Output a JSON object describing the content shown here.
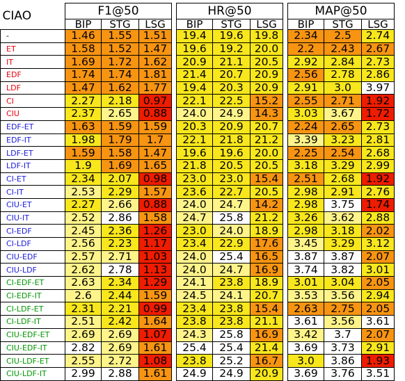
{
  "table": {
    "corner_label": "CIAO",
    "groups": [
      {
        "name": "F1@50",
        "subcols": [
          "BIP",
          "STG",
          "LSG"
        ]
      },
      {
        "name": "HR@50",
        "subcols": [
          "BIP",
          "STG",
          "LSG"
        ]
      },
      {
        "name": "MAP@50",
        "subcols": [
          "BIP",
          "STG",
          "LSG"
        ]
      }
    ],
    "label_colors": {
      "black": "#000000",
      "red": "#e8000b",
      "blue": "#1a1adc",
      "green": "#009600"
    },
    "cell_colors": {
      "red": "#ee1c00",
      "orange": "#f79412",
      "yellow": "#f8e71c",
      "lightyellow": "#fff48a",
      "white": "#ffffff"
    },
    "rows": [
      {
        "label": "-",
        "color": "black",
        "values": [
          "1.46",
          "1.55",
          "1.51",
          "19.4",
          "19.6",
          "19.8",
          "2.34",
          "2.5",
          "2.74"
        ],
        "shades": [
          "orange",
          "orange",
          "orange",
          "yellow",
          "yellow",
          "yellow",
          "orange",
          "orange",
          "yellow"
        ]
      },
      {
        "label": "ET",
        "color": "red",
        "values": [
          "1.58",
          "1.52",
          "1.47",
          "19.6",
          "19.2",
          "20.0",
          "2.2",
          "2.43",
          "2.67"
        ],
        "shades": [
          "orange",
          "orange",
          "orange",
          "yellow",
          "yellow",
          "yellow",
          "orange",
          "orange",
          "orange"
        ]
      },
      {
        "label": "IT",
        "color": "red",
        "values": [
          "1.69",
          "1.72",
          "1.62",
          "20.9",
          "21.1",
          "20.5",
          "2.92",
          "2.84",
          "2.73"
        ],
        "shades": [
          "orange",
          "orange",
          "orange",
          "yellow",
          "yellow",
          "yellow",
          "yellow",
          "yellow",
          "yellow"
        ]
      },
      {
        "label": "EDF",
        "color": "red",
        "values": [
          "1.74",
          "1.74",
          "1.81",
          "21.4",
          "20.7",
          "20.9",
          "2.56",
          "2.78",
          "2.86"
        ],
        "shades": [
          "orange",
          "orange",
          "orange",
          "yellow",
          "yellow",
          "yellow",
          "orange",
          "yellow",
          "yellow"
        ]
      },
      {
        "label": "LDF",
        "color": "red",
        "values": [
          "1.47",
          "1.62",
          "1.77",
          "19.4",
          "20.3",
          "20.9",
          "2.91",
          "3.0",
          "3.97"
        ],
        "shades": [
          "orange",
          "orange",
          "orange",
          "yellow",
          "yellow",
          "yellow",
          "yellow",
          "yellow",
          "white"
        ]
      },
      {
        "label": "CI",
        "color": "red",
        "values": [
          "2.27",
          "2.18",
          "0.97",
          "22.1",
          "22.5",
          "15.2",
          "2.55",
          "2.71",
          "1.92"
        ],
        "shades": [
          "yellow",
          "yellow",
          "red",
          "yellow",
          "yellow",
          "orange",
          "orange",
          "orange",
          "red"
        ]
      },
      {
        "label": "CIU",
        "color": "red",
        "values": [
          "2.37",
          "2.65",
          "0.88",
          "24.0",
          "24.9",
          "14.3",
          "3.03",
          "3.67",
          "1.72"
        ],
        "shades": [
          "yellow",
          "lightyellow",
          "red",
          "lightyellow",
          "lightyellow",
          "orange",
          "yellow",
          "lightyellow",
          "red"
        ]
      },
      {
        "label": "EDF-ET",
        "color": "blue",
        "values": [
          "1.63",
          "1.59",
          "1.59",
          "20.3",
          "20.9",
          "20.7",
          "2.24",
          "2.65",
          "2.73"
        ],
        "shades": [
          "orange",
          "orange",
          "orange",
          "yellow",
          "yellow",
          "yellow",
          "orange",
          "orange",
          "yellow"
        ]
      },
      {
        "label": "EDF-IT",
        "color": "blue",
        "values": [
          "1.98",
          "1.79",
          "1.7",
          "22.1",
          "21.8",
          "21.2",
          "3.39",
          "3.23",
          "2.81"
        ],
        "shades": [
          "yellow",
          "orange",
          "orange",
          "yellow",
          "yellow",
          "yellow",
          "lightyellow",
          "yellow",
          "yellow"
        ]
      },
      {
        "label": "LDF-ET",
        "color": "blue",
        "values": [
          "1.59",
          "1.58",
          "1.47",
          "19.6",
          "19.6",
          "20.0",
          "2.25",
          "2.54",
          "2.68"
        ],
        "shades": [
          "orange",
          "orange",
          "orange",
          "yellow",
          "yellow",
          "yellow",
          "orange",
          "orange",
          "yellow"
        ]
      },
      {
        "label": "LDF-IT",
        "color": "blue",
        "values": [
          "1.9",
          "1.69",
          "1.65",
          "21.8",
          "20.5",
          "20.5",
          "3.18",
          "3.29",
          "2.99"
        ],
        "shades": [
          "yellow",
          "orange",
          "orange",
          "yellow",
          "yellow",
          "yellow",
          "yellow",
          "yellow",
          "yellow"
        ]
      },
      {
        "label": "CI-ET",
        "color": "blue",
        "values": [
          "2.34",
          "2.07",
          "0.98",
          "23.0",
          "23.0",
          "15.4",
          "2.51",
          "2.68",
          "1.92"
        ],
        "shades": [
          "yellow",
          "yellow",
          "red",
          "yellow",
          "yellow",
          "orange",
          "orange",
          "yellow",
          "red"
        ]
      },
      {
        "label": "CI-IT",
        "color": "blue",
        "values": [
          "2.53",
          "2.29",
          "1.57",
          "23.6",
          "22.7",
          "20.5",
          "2.98",
          "2.91",
          "2.76"
        ],
        "shades": [
          "lightyellow",
          "yellow",
          "orange",
          "yellow",
          "yellow",
          "yellow",
          "yellow",
          "yellow",
          "yellow"
        ]
      },
      {
        "label": "CIU-ET",
        "color": "blue",
        "values": [
          "2.27",
          "2.66",
          "0.88",
          "24.0",
          "24.7",
          "14.2",
          "2.98",
          "3.75",
          "1.74"
        ],
        "shades": [
          "yellow",
          "lightyellow",
          "red",
          "lightyellow",
          "lightyellow",
          "orange",
          "yellow",
          "white",
          "red"
        ]
      },
      {
        "label": "CIU-IT",
        "color": "blue",
        "values": [
          "2.52",
          "2.86",
          "1.58",
          "24.7",
          "25.8",
          "21.2",
          "3.26",
          "3.62",
          "2.88"
        ],
        "shades": [
          "lightyellow",
          "white",
          "orange",
          "lightyellow",
          "white",
          "yellow",
          "yellow",
          "lightyellow",
          "yellow"
        ]
      },
      {
        "label": "CI-EDF",
        "color": "blue",
        "values": [
          "2.45",
          "2.36",
          "1.26",
          "23.0",
          "24.0",
          "18.9",
          "2.98",
          "3.18",
          "2.02"
        ],
        "shades": [
          "lightyellow",
          "yellow",
          "red",
          "yellow",
          "lightyellow",
          "yellow",
          "yellow",
          "yellow",
          "orange"
        ]
      },
      {
        "label": "CI-LDF",
        "color": "blue",
        "values": [
          "2.56",
          "2.23",
          "1.17",
          "23.4",
          "22.9",
          "17.6",
          "3.45",
          "3.29",
          "3.12"
        ],
        "shades": [
          "lightyellow",
          "yellow",
          "red",
          "yellow",
          "yellow",
          "orange",
          "lightyellow",
          "yellow",
          "yellow"
        ]
      },
      {
        "label": "CIU-EDF",
        "color": "blue",
        "values": [
          "2.57",
          "2.71",
          "1.03",
          "24.0",
          "25.4",
          "16.5",
          "3.87",
          "3.87",
          "2.07"
        ],
        "shades": [
          "lightyellow",
          "lightyellow",
          "red",
          "lightyellow",
          "white",
          "orange",
          "white",
          "white",
          "orange"
        ]
      },
      {
        "label": "CIU-LDF",
        "color": "blue",
        "values": [
          "2.62",
          "2.78",
          "1.13",
          "24.0",
          "24.7",
          "16.9",
          "3.74",
          "3.82",
          "3.01"
        ],
        "shades": [
          "lightyellow",
          "white",
          "red",
          "lightyellow",
          "lightyellow",
          "orange",
          "white",
          "white",
          "yellow"
        ]
      },
      {
        "label": "CI-EDF-ET",
        "color": "green",
        "values": [
          "2.63",
          "2.34",
          "1.29",
          "24.1",
          "23.8",
          "18.9",
          "3.01",
          "3.04",
          "2.05"
        ],
        "shades": [
          "lightyellow",
          "yellow",
          "red",
          "lightyellow",
          "yellow",
          "yellow",
          "yellow",
          "yellow",
          "orange"
        ]
      },
      {
        "label": "CI-EDF-IT",
        "color": "green",
        "values": [
          "2.6",
          "2.44",
          "1.59",
          "24.5",
          "24.1",
          "20.7",
          "3.53",
          "3.56",
          "2.94"
        ],
        "shades": [
          "lightyellow",
          "yellow",
          "orange",
          "lightyellow",
          "lightyellow",
          "yellow",
          "lightyellow",
          "lightyellow",
          "yellow"
        ]
      },
      {
        "label": "CI-LDF-ET",
        "color": "green",
        "values": [
          "2.31",
          "2.21",
          "0.99",
          "23.4",
          "23.8",
          "15.4",
          "2.63",
          "2.75",
          "2.05"
        ],
        "shades": [
          "yellow",
          "yellow",
          "red",
          "yellow",
          "yellow",
          "orange",
          "orange",
          "orange",
          "orange"
        ]
      },
      {
        "label": "CI-LDF-IT",
        "color": "green",
        "values": [
          "2.51",
          "2.42",
          "1.64",
          "23.8",
          "23.8",
          "21.1",
          "3.61",
          "3.56",
          "3.61"
        ],
        "shades": [
          "lightyellow",
          "yellow",
          "orange",
          "yellow",
          "yellow",
          "yellow",
          "white",
          "lightyellow",
          "white"
        ]
      },
      {
        "label": "CIU-EDF-ET",
        "color": "green",
        "values": [
          "2.69",
          "2.69",
          "1.07",
          "24.3",
          "25.8",
          "16.9",
          "3.42",
          "3.7",
          "2.07"
        ],
        "shades": [
          "lightyellow",
          "lightyellow",
          "red",
          "lightyellow",
          "white",
          "orange",
          "lightyellow",
          "white",
          "orange"
        ]
      },
      {
        "label": "CIU-EDF-IT",
        "color": "green",
        "values": [
          "2.82",
          "2.69",
          "1.61",
          "25.4",
          "25.4",
          "21.4",
          "3.69",
          "3.73",
          "2.91"
        ],
        "shades": [
          "white",
          "lightyellow",
          "orange",
          "white",
          "white",
          "yellow",
          "white",
          "white",
          "yellow"
        ]
      },
      {
        "label": "CIU-LDF-ET",
        "color": "green",
        "values": [
          "2.55",
          "2.72",
          "1.08",
          "23.8",
          "25.2",
          "16.7",
          "3.0",
          "3.86",
          "1.93"
        ],
        "shades": [
          "lightyellow",
          "lightyellow",
          "red",
          "yellow",
          "white",
          "orange",
          "yellow",
          "white",
          "red"
        ]
      },
      {
        "label": "CIU-LDF-IT",
        "color": "green",
        "values": [
          "2.99",
          "2.88",
          "1.61",
          "24.9",
          "24.9",
          "20.9",
          "3.69",
          "3.76",
          "3.51"
        ],
        "shades": [
          "white",
          "white",
          "orange",
          "white",
          "white",
          "yellow",
          "white",
          "white",
          "white"
        ]
      }
    ]
  }
}
